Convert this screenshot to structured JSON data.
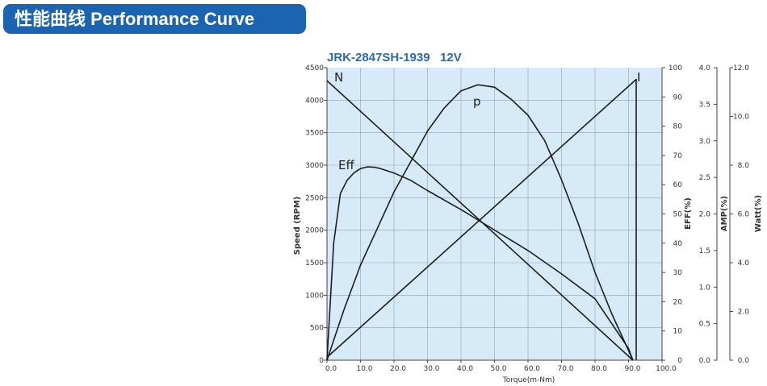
{
  "banner": {
    "title_cn": "性能曲线",
    "title_en": "Performance Curve"
  },
  "colors": {
    "banner_bg": "#1a64b2",
    "plot_bg": "#d6eaf8",
    "grid": "#8fa3b8",
    "curve": "#1e1e1e",
    "model_text": "#2a6aa8"
  },
  "chart_data": {
    "type": "line",
    "title": "JRK-2847SH-1939   12V",
    "xlabel": "Torque(m-Nm)",
    "xlim": [
      0,
      100
    ],
    "x_ticks": [
      "0.0",
      "10.0",
      "20.0",
      "30.0",
      "40.0",
      "50.0",
      "60.0",
      "70.0",
      "80.0",
      "90.0",
      "100.0"
    ],
    "grid": true,
    "axes": {
      "speed": {
        "label": "Speed (RPM)",
        "range": [
          0,
          4500
        ],
        "ticks": [
          "0",
          "500",
          "1000",
          "1500",
          "2000",
          "2500",
          "3000",
          "3500",
          "4000",
          "4500"
        ]
      },
      "eff": {
        "label": "EFF(%)",
        "range": [
          0,
          100
        ],
        "ticks": [
          "0",
          "10",
          "20",
          "30",
          "40",
          "50",
          "60",
          "70",
          "80",
          "90",
          "100"
        ]
      },
      "amp": {
        "label": "AMP(%)",
        "range": [
          0,
          4.0
        ],
        "ticks": [
          "0.0",
          "0.5",
          "1.0",
          "1.5",
          "2.0",
          "2.5",
          "3.0",
          "3.5",
          "4.0"
        ]
      },
      "watt": {
        "label": "Watt(%)",
        "range": [
          0,
          12.0
        ],
        "ticks": [
          "0.0",
          "2.0",
          "4.0",
          "6.0",
          "8.0",
          "10.0",
          "12.0"
        ]
      }
    },
    "series": [
      {
        "name": "N",
        "axis": "speed",
        "x": [
          0,
          91.3
        ],
        "y": [
          4300,
          0
        ]
      },
      {
        "name": "I",
        "axis": "amp",
        "x": [
          0,
          92.3,
          92.3
        ],
        "y": [
          0.04,
          3.84,
          0
        ]
      },
      {
        "name": "p",
        "axis": "watt",
        "x": [
          0,
          5,
          10,
          15,
          20,
          25,
          30,
          35,
          40,
          45,
          50,
          55,
          60,
          65,
          70,
          75,
          80,
          85,
          90,
          91.3
        ],
        "y": [
          0,
          2.05,
          3.9,
          5.4,
          6.9,
          8.15,
          9.4,
          10.35,
          11.05,
          11.3,
          11.2,
          10.7,
          10.05,
          9.0,
          7.4,
          5.6,
          3.6,
          1.9,
          0.4,
          0
        ]
      },
      {
        "name": "Eff",
        "axis": "eff",
        "x": [
          0,
          2,
          4,
          6,
          8,
          10,
          12,
          14,
          16,
          20,
          25,
          30,
          40,
          50,
          60,
          70,
          80,
          90,
          91.3
        ],
        "y": [
          0,
          40,
          57,
          61.5,
          64,
          65.5,
          66.1,
          66,
          65.5,
          64,
          61.5,
          58,
          51.5,
          44.5,
          37.5,
          29.5,
          21,
          4,
          0
        ]
      }
    ]
  }
}
